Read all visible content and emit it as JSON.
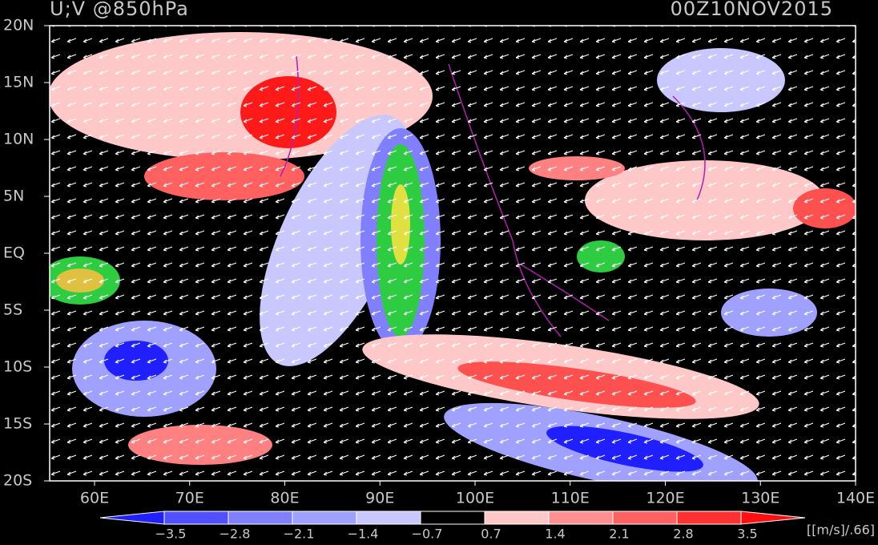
{
  "header": {
    "title": "U;V @850hPa",
    "time": "00Z10NOV2015"
  },
  "lat_labels": [
    "20N",
    "15N",
    "10N",
    "5N",
    "EQ",
    "5S",
    "10S",
    "15S",
    "20S"
  ],
  "lon_labels": [
    "60E",
    "70E",
    "80E",
    "90E",
    "100E",
    "110E",
    "120E",
    "130E",
    "140E"
  ],
  "colorbar": {
    "labels": [
      "−3.5",
      "−2.8",
      "−2.1",
      "−1.4",
      "−0.7",
      "0.7",
      "1.4",
      "2.1",
      "2.8",
      "3.5"
    ],
    "units": "[[m/s]/.66]"
  }
}
